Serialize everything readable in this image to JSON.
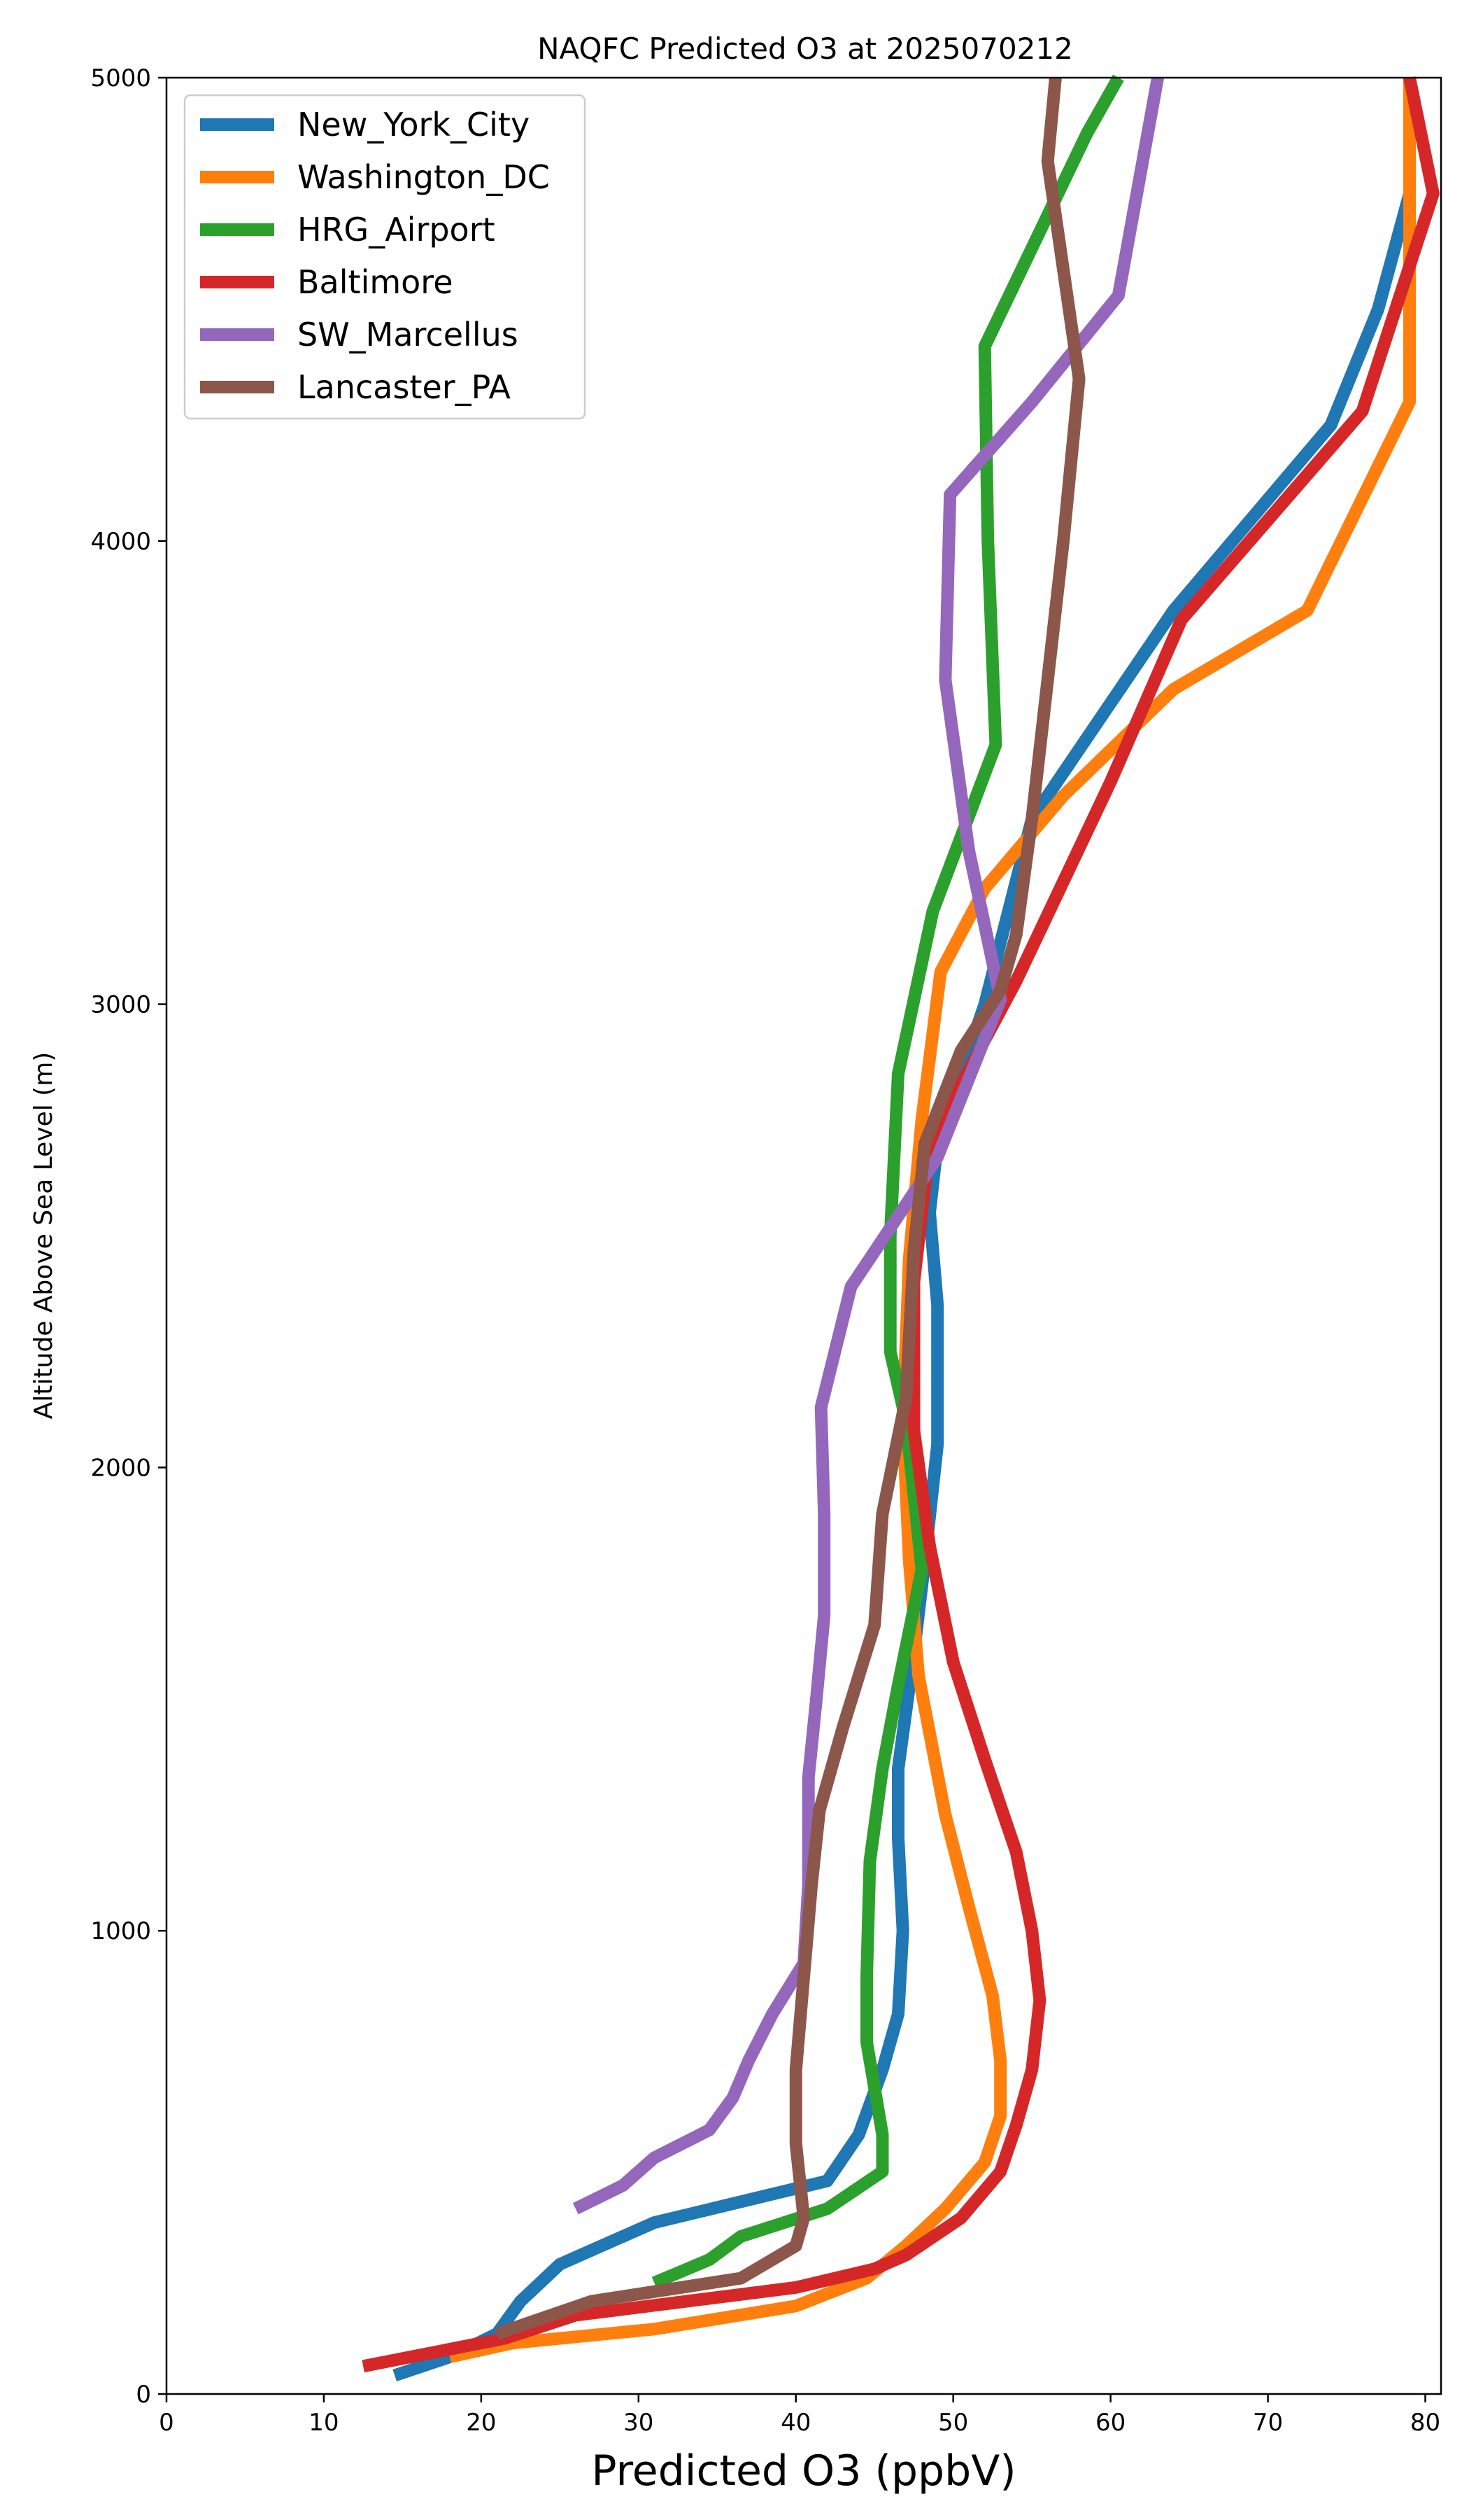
{
  "chart_data": {
    "type": "line",
    "title": "NAQFC Predicted O3 at 2025070212",
    "xlabel": "Predicted O3 (ppbV)",
    "ylabel": "Altitude Above Sea Level (m)",
    "xlim": [
      0,
      81
    ],
    "ylim": [
      0,
      5000
    ],
    "xticks": [
      0,
      10,
      20,
      30,
      40,
      50,
      60,
      70,
      80
    ],
    "yticks": [
      0,
      1000,
      2000,
      3000,
      4000,
      5000
    ],
    "legend": "upper-left",
    "grid": false,
    "series": [
      {
        "name": "New_York_City",
        "color": "#1f77b4",
        "points": [
          [
            14.5,
            40
          ],
          [
            18,
            80
          ],
          [
            21,
            130
          ],
          [
            22.5,
            200
          ],
          [
            25,
            280
          ],
          [
            31,
            370
          ],
          [
            42,
            460
          ],
          [
            44,
            560
          ],
          [
            45.5,
            700
          ],
          [
            46.5,
            820
          ],
          [
            46.8,
            1000
          ],
          [
            46.5,
            1200
          ],
          [
            46.5,
            1350
          ],
          [
            47.5,
            1600
          ],
          [
            48.2,
            1800
          ],
          [
            49,
            2050
          ],
          [
            49,
            2350
          ],
          [
            48.5,
            2550
          ],
          [
            49,
            2700
          ],
          [
            52,
            3000
          ],
          [
            55,
            3400
          ],
          [
            60,
            3650
          ],
          [
            64,
            3850
          ],
          [
            74,
            4250
          ],
          [
            77,
            4500
          ],
          [
            79,
            4750
          ]
        ]
      },
      {
        "name": "Washington_DC",
        "color": "#ff7f0e",
        "points": [
          [
            18,
            80
          ],
          [
            22,
            110
          ],
          [
            31,
            140
          ],
          [
            40,
            190
          ],
          [
            44.5,
            250
          ],
          [
            47,
            320
          ],
          [
            49.5,
            400
          ],
          [
            52,
            500
          ],
          [
            53,
            600
          ],
          [
            53,
            720
          ],
          [
            52.5,
            860
          ],
          [
            51,
            1050
          ],
          [
            49.5,
            1250
          ],
          [
            47.8,
            1550
          ],
          [
            47.2,
            1800
          ],
          [
            46.8,
            2100
          ],
          [
            47.2,
            2450
          ],
          [
            48,
            2750
          ],
          [
            49.2,
            3070
          ],
          [
            52,
            3250
          ],
          [
            57,
            3450
          ],
          [
            64,
            3680
          ],
          [
            72.5,
            3850
          ],
          [
            79,
            4300
          ],
          [
            79,
            5000
          ]
        ]
      },
      {
        "name": "HRG_Airport",
        "color": "#2ca02c",
        "points": [
          [
            31,
            240
          ],
          [
            34.5,
            290
          ],
          [
            36.5,
            340
          ],
          [
            42,
            400
          ],
          [
            45.5,
            480
          ],
          [
            45.5,
            560
          ],
          [
            44.5,
            760
          ],
          [
            44.5,
            900
          ],
          [
            44.7,
            1150
          ],
          [
            45.5,
            1350
          ],
          [
            46.5,
            1530
          ],
          [
            48,
            1780
          ],
          [
            47,
            2100
          ],
          [
            46,
            2250
          ],
          [
            46,
            2500
          ],
          [
            46.5,
            2850
          ],
          [
            48.7,
            3200
          ],
          [
            52.7,
            3560
          ],
          [
            52.2,
            4000
          ],
          [
            52,
            4420
          ],
          [
            58.5,
            4880
          ],
          [
            60.5,
            5000
          ]
        ]
      },
      {
        "name": "Baltimore",
        "color": "#d62728",
        "points": [
          [
            12.5,
            60
          ],
          [
            21.5,
            120
          ],
          [
            26,
            170
          ],
          [
            40,
            230
          ],
          [
            45,
            270
          ],
          [
            47,
            300
          ],
          [
            50.5,
            380
          ],
          [
            53,
            480
          ],
          [
            54,
            580
          ],
          [
            55,
            700
          ],
          [
            55.5,
            850
          ],
          [
            55,
            1000
          ],
          [
            54,
            1170
          ],
          [
            52,
            1370
          ],
          [
            50,
            1580
          ],
          [
            48.5,
            1830
          ],
          [
            47.5,
            2080
          ],
          [
            47.5,
            2400
          ],
          [
            48.5,
            2700
          ],
          [
            54,
            3050
          ],
          [
            60,
            3480
          ],
          [
            64.5,
            3830
          ],
          [
            76,
            4280
          ],
          [
            80.5,
            4750
          ],
          [
            79,
            5000
          ]
        ]
      },
      {
        "name": "SW_Marcellus",
        "color": "#9467bd",
        "points": [
          [
            26,
            400
          ],
          [
            29,
            450
          ],
          [
            31,
            510
          ],
          [
            34.5,
            570
          ],
          [
            36,
            640
          ],
          [
            37,
            720
          ],
          [
            38.5,
            820
          ],
          [
            40.5,
            930
          ],
          [
            40.8,
            1100
          ],
          [
            40.8,
            1330
          ],
          [
            41.3,
            1500
          ],
          [
            41.8,
            1680
          ],
          [
            41.8,
            1900
          ],
          [
            41.6,
            2130
          ],
          [
            43.5,
            2390
          ],
          [
            49,
            2670
          ],
          [
            53,
            3010
          ],
          [
            51,
            3330
          ],
          [
            49.5,
            3700
          ],
          [
            49.8,
            4100
          ],
          [
            55,
            4300
          ],
          [
            60.5,
            4530
          ],
          [
            63,
            5000
          ]
        ]
      },
      {
        "name": "Lancaster_PA",
        "color": "#8c564b",
        "points": [
          [
            21,
            130
          ],
          [
            27,
            200
          ],
          [
            36.5,
            250
          ],
          [
            40,
            320
          ],
          [
            40.5,
            380
          ],
          [
            40,
            540
          ],
          [
            40,
            580
          ],
          [
            40,
            700
          ],
          [
            40.5,
            900
          ],
          [
            41,
            1100
          ],
          [
            41.5,
            1260
          ],
          [
            43,
            1440
          ],
          [
            45,
            1660
          ],
          [
            45.5,
            1900
          ],
          [
            47,
            2150
          ],
          [
            47.5,
            2470
          ],
          [
            48.2,
            2700
          ],
          [
            50.5,
            2900
          ],
          [
            53,
            3030
          ],
          [
            54,
            3150
          ],
          [
            55,
            3400
          ],
          [
            56,
            3700
          ],
          [
            57,
            4000
          ],
          [
            58,
            4350
          ],
          [
            56,
            4820
          ],
          [
            56.5,
            5000
          ]
        ]
      }
    ]
  }
}
